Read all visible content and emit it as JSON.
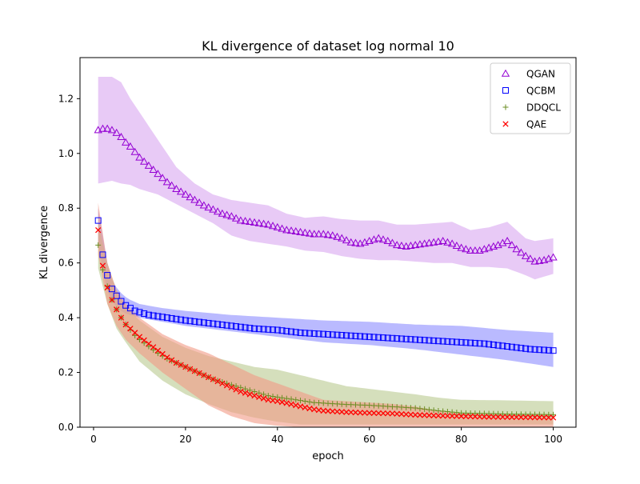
{
  "chart_data": {
    "type": "line",
    "title": "KL divergence of dataset log normal 10",
    "xlabel": "epoch",
    "ylabel": "KL divergence",
    "xlim": [
      -2.95,
      104.95
    ],
    "ylim": [
      0.0,
      1.35
    ],
    "xticks": [
      0,
      20,
      40,
      60,
      80,
      100
    ],
    "xtick_labels": [
      "0",
      "20",
      "40",
      "60",
      "80",
      "100"
    ],
    "yticks": [
      0.0,
      0.2,
      0.4,
      0.6,
      0.8,
      1.0,
      1.2
    ],
    "ytick_labels": [
      "0.0",
      "0.2",
      "0.4",
      "0.6",
      "0.8",
      "1.0",
      "1.2"
    ],
    "grid": false,
    "legend_position": "top-right",
    "series": [
      {
        "name": "QGAN",
        "marker": "triangle",
        "color": "#9400d3",
        "band_color": "#d9a6f0",
        "anchors": [
          [
            1,
            1.085
          ],
          [
            2,
            1.09
          ],
          [
            3,
            1.09
          ],
          [
            4,
            1.085
          ],
          [
            5,
            1.075
          ],
          [
            6,
            1.06
          ],
          [
            7,
            1.04
          ],
          [
            8,
            1.025
          ],
          [
            9,
            1.005
          ],
          [
            10,
            0.985
          ],
          [
            12,
            0.955
          ],
          [
            14,
            0.925
          ],
          [
            16,
            0.895
          ],
          [
            18,
            0.87
          ],
          [
            20,
            0.85
          ],
          [
            22,
            0.83
          ],
          [
            24,
            0.81
          ],
          [
            26,
            0.795
          ],
          [
            28,
            0.78
          ],
          [
            30,
            0.77
          ],
          [
            32,
            0.755
          ],
          [
            34,
            0.75
          ],
          [
            36,
            0.745
          ],
          [
            38,
            0.74
          ],
          [
            40,
            0.73
          ],
          [
            42,
            0.72
          ],
          [
            44,
            0.715
          ],
          [
            46,
            0.71
          ],
          [
            48,
            0.705
          ],
          [
            50,
            0.705
          ],
          [
            52,
            0.7
          ],
          [
            54,
            0.69
          ],
          [
            56,
            0.675
          ],
          [
            58,
            0.67
          ],
          [
            60,
            0.68
          ],
          [
            62,
            0.69
          ],
          [
            64,
            0.68
          ],
          [
            66,
            0.665
          ],
          [
            68,
            0.66
          ],
          [
            70,
            0.665
          ],
          [
            72,
            0.67
          ],
          [
            74,
            0.675
          ],
          [
            76,
            0.68
          ],
          [
            78,
            0.67
          ],
          [
            80,
            0.655
          ],
          [
            82,
            0.645
          ],
          [
            84,
            0.645
          ],
          [
            86,
            0.655
          ],
          [
            88,
            0.665
          ],
          [
            90,
            0.68
          ],
          [
            92,
            0.65
          ],
          [
            94,
            0.625
          ],
          [
            96,
            0.605
          ],
          [
            98,
            0.61
          ],
          [
            100,
            0.62
          ]
        ],
        "band_anchors": [
          [
            1,
            0.89,
            1.28
          ],
          [
            4,
            0.9,
            1.28
          ],
          [
            6,
            0.89,
            1.26
          ],
          [
            8,
            0.885,
            1.2
          ],
          [
            10,
            0.87,
            1.15
          ],
          [
            14,
            0.85,
            1.05
          ],
          [
            18,
            0.815,
            0.95
          ],
          [
            22,
            0.78,
            0.89
          ],
          [
            26,
            0.745,
            0.85
          ],
          [
            30,
            0.7,
            0.83
          ],
          [
            34,
            0.68,
            0.82
          ],
          [
            38,
            0.67,
            0.81
          ],
          [
            42,
            0.66,
            0.78
          ],
          [
            46,
            0.645,
            0.765
          ],
          [
            50,
            0.64,
            0.77
          ],
          [
            54,
            0.625,
            0.76
          ],
          [
            58,
            0.615,
            0.755
          ],
          [
            62,
            0.61,
            0.755
          ],
          [
            66,
            0.61,
            0.74
          ],
          [
            70,
            0.605,
            0.74
          ],
          [
            74,
            0.6,
            0.745
          ],
          [
            78,
            0.6,
            0.75
          ],
          [
            82,
            0.585,
            0.72
          ],
          [
            86,
            0.585,
            0.73
          ],
          [
            90,
            0.58,
            0.75
          ],
          [
            94,
            0.555,
            0.69
          ],
          [
            96,
            0.54,
            0.68
          ],
          [
            100,
            0.56,
            0.69
          ]
        ]
      },
      {
        "name": "QCBM",
        "marker": "square",
        "color": "#0000ff",
        "band_color": "#8c8cff",
        "anchors": [
          [
            1,
            0.755
          ],
          [
            2,
            0.63
          ],
          [
            3,
            0.555
          ],
          [
            4,
            0.505
          ],
          [
            5,
            0.48
          ],
          [
            6,
            0.46
          ],
          [
            7,
            0.445
          ],
          [
            8,
            0.435
          ],
          [
            9,
            0.425
          ],
          [
            10,
            0.42
          ],
          [
            12,
            0.41
          ],
          [
            14,
            0.405
          ],
          [
            16,
            0.4
          ],
          [
            18,
            0.395
          ],
          [
            20,
            0.39
          ],
          [
            25,
            0.38
          ],
          [
            30,
            0.37
          ],
          [
            35,
            0.36
          ],
          [
            40,
            0.355
          ],
          [
            45,
            0.345
          ],
          [
            50,
            0.34
          ],
          [
            55,
            0.335
          ],
          [
            60,
            0.33
          ],
          [
            65,
            0.325
          ],
          [
            70,
            0.32
          ],
          [
            75,
            0.315
          ],
          [
            80,
            0.31
          ],
          [
            85,
            0.305
          ],
          [
            90,
            0.295
          ],
          [
            95,
            0.285
          ],
          [
            100,
            0.28
          ]
        ],
        "band_anchors": [
          [
            1,
            0.68,
            0.8
          ],
          [
            2,
            0.57,
            0.7
          ],
          [
            3,
            0.5,
            0.6
          ],
          [
            4,
            0.46,
            0.54
          ],
          [
            5,
            0.44,
            0.51
          ],
          [
            6,
            0.425,
            0.49
          ],
          [
            7,
            0.415,
            0.475
          ],
          [
            8,
            0.41,
            0.465
          ],
          [
            10,
            0.4,
            0.45
          ],
          [
            15,
            0.385,
            0.435
          ],
          [
            20,
            0.37,
            0.425
          ],
          [
            30,
            0.35,
            0.41
          ],
          [
            40,
            0.33,
            0.4
          ],
          [
            50,
            0.31,
            0.39
          ],
          [
            60,
            0.3,
            0.385
          ],
          [
            70,
            0.285,
            0.375
          ],
          [
            80,
            0.265,
            0.37
          ],
          [
            90,
            0.245,
            0.355
          ],
          [
            100,
            0.22,
            0.345
          ]
        ]
      },
      {
        "name": "DDQCL",
        "marker": "plus",
        "color": "#6b8e23",
        "band_color": "#b9c98f",
        "anchors": [
          [
            1,
            0.665
          ],
          [
            2,
            0.575
          ],
          [
            3,
            0.515
          ],
          [
            4,
            0.465
          ],
          [
            5,
            0.43
          ],
          [
            6,
            0.4
          ],
          [
            7,
            0.375
          ],
          [
            8,
            0.355
          ],
          [
            9,
            0.335
          ],
          [
            10,
            0.32
          ],
          [
            12,
            0.295
          ],
          [
            14,
            0.27
          ],
          [
            16,
            0.25
          ],
          [
            18,
            0.235
          ],
          [
            20,
            0.22
          ],
          [
            22,
            0.205
          ],
          [
            24,
            0.19
          ],
          [
            26,
            0.175
          ],
          [
            28,
            0.165
          ],
          [
            30,
            0.155
          ],
          [
            32,
            0.145
          ],
          [
            34,
            0.135
          ],
          [
            36,
            0.125
          ],
          [
            38,
            0.115
          ],
          [
            40,
            0.11
          ],
          [
            42,
            0.105
          ],
          [
            44,
            0.1
          ],
          [
            46,
            0.095
          ],
          [
            48,
            0.09
          ],
          [
            50,
            0.088
          ],
          [
            55,
            0.083
          ],
          [
            60,
            0.08
          ],
          [
            65,
            0.075
          ],
          [
            70,
            0.07
          ],
          [
            75,
            0.06
          ],
          [
            80,
            0.052
          ],
          [
            85,
            0.05
          ],
          [
            90,
            0.048
          ],
          [
            95,
            0.047
          ],
          [
            100,
            0.046
          ]
        ],
        "band_anchors": [
          [
            1,
            0.58,
            0.75
          ],
          [
            3,
            0.45,
            0.6
          ],
          [
            5,
            0.36,
            0.5
          ],
          [
            7,
            0.31,
            0.44
          ],
          [
            10,
            0.24,
            0.39
          ],
          [
            15,
            0.17,
            0.33
          ],
          [
            20,
            0.12,
            0.29
          ],
          [
            25,
            0.085,
            0.26
          ],
          [
            30,
            0.055,
            0.24
          ],
          [
            35,
            0.035,
            0.22
          ],
          [
            40,
            0.02,
            0.21
          ],
          [
            45,
            0.01,
            0.19
          ],
          [
            50,
            0.01,
            0.17
          ],
          [
            55,
            0.01,
            0.15
          ],
          [
            60,
            0.01,
            0.14
          ],
          [
            65,
            0.01,
            0.13
          ],
          [
            70,
            0.01,
            0.12
          ],
          [
            75,
            0.01,
            0.108
          ],
          [
            80,
            0.01,
            0.1
          ],
          [
            90,
            0.01,
            0.098
          ],
          [
            100,
            0.01,
            0.095
          ]
        ]
      },
      {
        "name": "QAE",
        "marker": "x",
        "color": "#ff0000",
        "band_color": "#f29a86",
        "anchors": [
          [
            1,
            0.72
          ],
          [
            2,
            0.59
          ],
          [
            3,
            0.51
          ],
          [
            4,
            0.465
          ],
          [
            5,
            0.43
          ],
          [
            6,
            0.4
          ],
          [
            7,
            0.375
          ],
          [
            8,
            0.36
          ],
          [
            9,
            0.345
          ],
          [
            10,
            0.33
          ],
          [
            12,
            0.305
          ],
          [
            14,
            0.28
          ],
          [
            16,
            0.255
          ],
          [
            18,
            0.235
          ],
          [
            20,
            0.22
          ],
          [
            22,
            0.205
          ],
          [
            24,
            0.19
          ],
          [
            26,
            0.175
          ],
          [
            28,
            0.16
          ],
          [
            30,
            0.145
          ],
          [
            32,
            0.13
          ],
          [
            34,
            0.12
          ],
          [
            36,
            0.11
          ],
          [
            38,
            0.1
          ],
          [
            40,
            0.095
          ],
          [
            42,
            0.088
          ],
          [
            44,
            0.08
          ],
          [
            46,
            0.072
          ],
          [
            48,
            0.065
          ],
          [
            50,
            0.06
          ],
          [
            55,
            0.055
          ],
          [
            60,
            0.052
          ],
          [
            65,
            0.05
          ],
          [
            70,
            0.045
          ],
          [
            75,
            0.042
          ],
          [
            80,
            0.04
          ],
          [
            85,
            0.038
          ],
          [
            90,
            0.037
          ],
          [
            95,
            0.036
          ],
          [
            100,
            0.035
          ]
        ],
        "band_anchors": [
          [
            1,
            0.63,
            0.82
          ],
          [
            3,
            0.45,
            0.6
          ],
          [
            5,
            0.37,
            0.5
          ],
          [
            7,
            0.32,
            0.45
          ],
          [
            10,
            0.27,
            0.4
          ],
          [
            15,
            0.2,
            0.34
          ],
          [
            20,
            0.14,
            0.3
          ],
          [
            25,
            0.08,
            0.27
          ],
          [
            30,
            0.04,
            0.23
          ],
          [
            35,
            0.015,
            0.19
          ],
          [
            40,
            0.005,
            0.16
          ],
          [
            45,
            0.0,
            0.13
          ],
          [
            50,
            0.0,
            0.1
          ],
          [
            55,
            0.0,
            0.095
          ],
          [
            60,
            0.0,
            0.09
          ],
          [
            65,
            0.0,
            0.085
          ],
          [
            70,
            0.0,
            0.075
          ],
          [
            75,
            0.0,
            0.06
          ],
          [
            80,
            0.0,
            0.05
          ],
          [
            90,
            0.0,
            0.045
          ],
          [
            100,
            0.0,
            0.045
          ]
        ]
      }
    ]
  }
}
